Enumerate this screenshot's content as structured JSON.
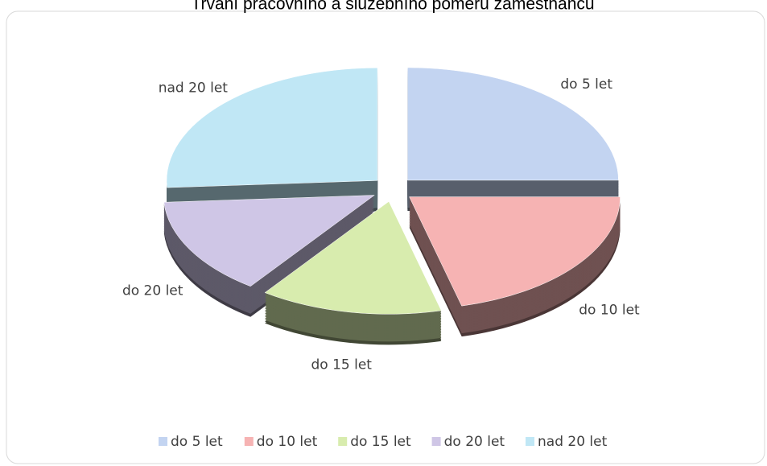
{
  "chart_data": {
    "type": "pie",
    "title": "Trvání pracovního a služebního poměru zaměstnanců",
    "categories": [
      "do 5 let",
      "do 10 let",
      "do 15 let",
      "do 20 let",
      "nad 20 let"
    ],
    "values": [
      25,
      21,
      14,
      14,
      26
    ],
    "colors": [
      "#c3d4f1",
      "#f6b3b3",
      "#d8ecae",
      "#cfc6e6",
      "#c0e7f5"
    ],
    "legend": "bottom"
  }
}
